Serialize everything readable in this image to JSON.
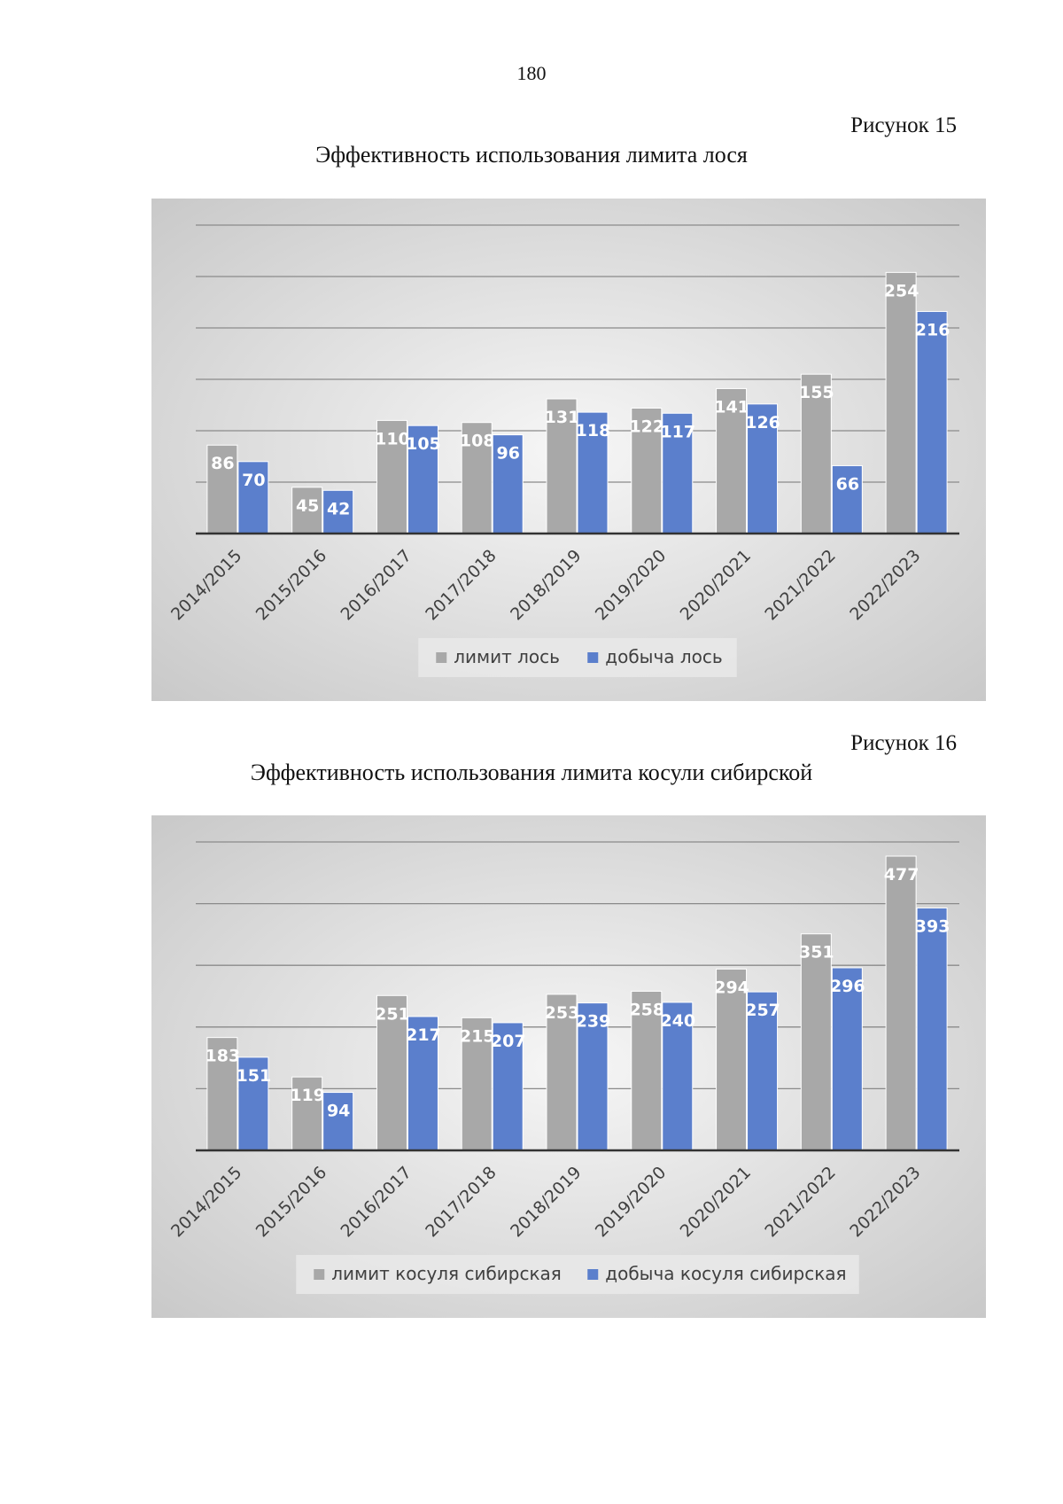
{
  "page_number": "180",
  "colors": {
    "limit": "#a8a8a8",
    "harvest": "#5b7fcc",
    "grid": "#8a8a8a",
    "axis": "#333333"
  },
  "figures": [
    {
      "label": "Рисунок 15",
      "title": "Эффективность использования лимита лося"
    },
    {
      "label": "Рисунок 16",
      "title": "Эффективность использования лимита косули сибирской"
    }
  ],
  "chart_data": [
    {
      "type": "bar",
      "title": "Эффективность использования лимита лося",
      "categories": [
        "2014/2015",
        "2015/2016",
        "2016/2017",
        "2017/2018",
        "2018/2019",
        "2019/2020",
        "2020/2021",
        "2021/2022",
        "2022/2023"
      ],
      "series": [
        {
          "name": "лимит лось",
          "values": [
            86,
            45,
            110,
            108,
            131,
            122,
            141,
            155,
            254
          ]
        },
        {
          "name": "добыча лось",
          "values": [
            70,
            42,
            105,
            96,
            118,
            117,
            126,
            66,
            216
          ]
        }
      ],
      "ylim": [
        0,
        300
      ],
      "grid_step": 50,
      "legend_position": "bottom",
      "grid": true
    },
    {
      "type": "bar",
      "title": "Эффективность использования лимита косули сибирской",
      "categories": [
        "2014/2015",
        "2015/2016",
        "2016/2017",
        "2017/2018",
        "2018/2019",
        "2019/2020",
        "2020/2021",
        "2021/2022",
        "2022/2023"
      ],
      "series": [
        {
          "name": "лимит косуля сибирская",
          "values": [
            183,
            119,
            251,
            215,
            253,
            258,
            294,
            351,
            477
          ]
        },
        {
          "name": "добыча косуля сибирская",
          "values": [
            151,
            94,
            217,
            207,
            239,
            240,
            257,
            296,
            393
          ]
        }
      ],
      "ylim": [
        0,
        500
      ],
      "grid_step": 100,
      "legend_position": "bottom",
      "grid": true
    }
  ]
}
